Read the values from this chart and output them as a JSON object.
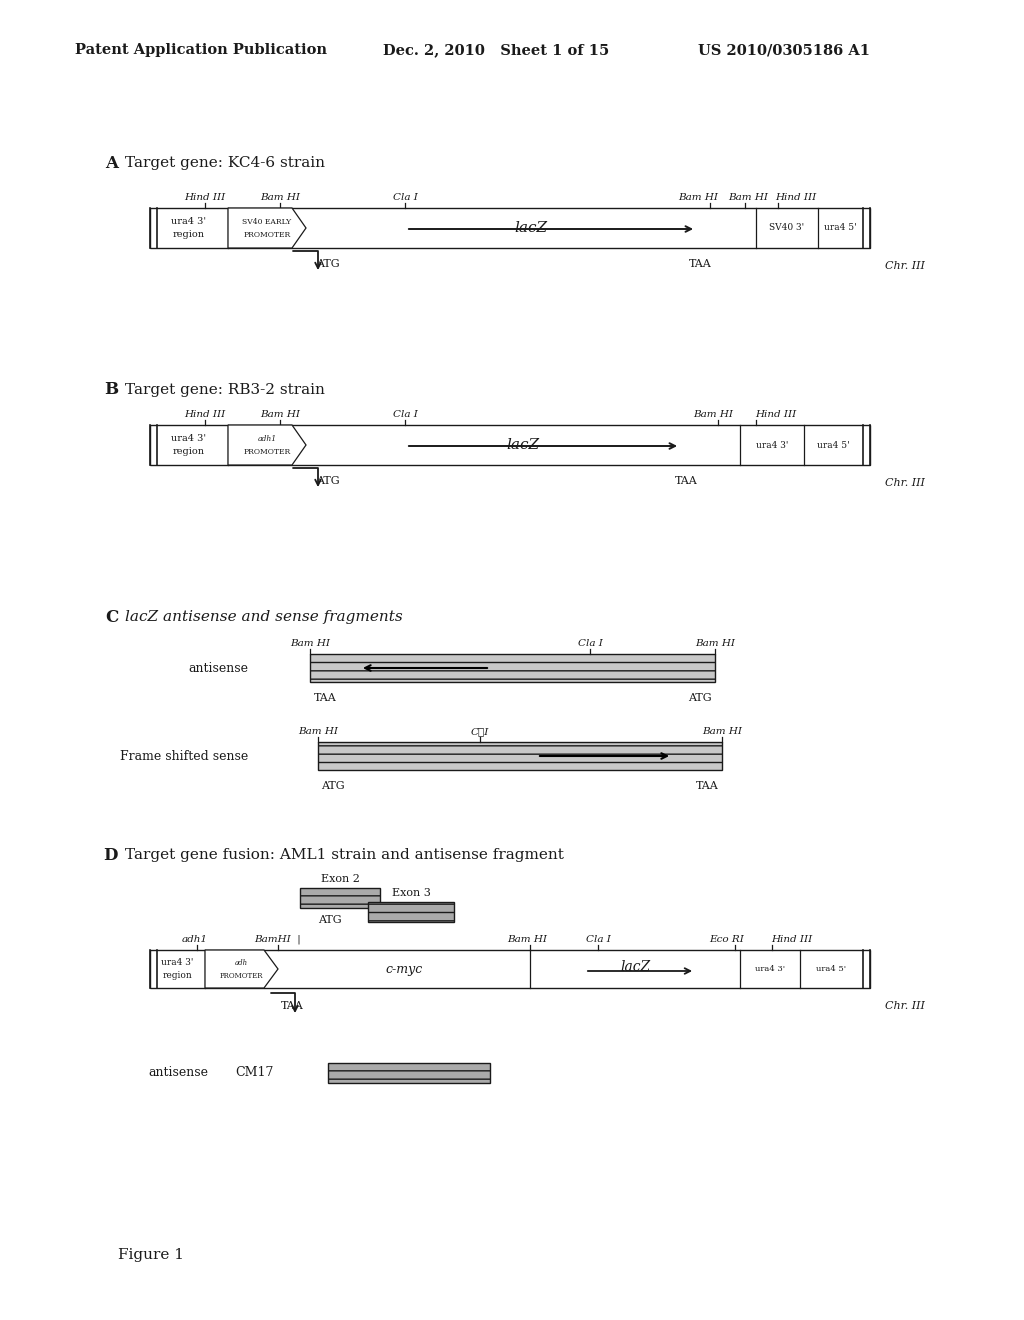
{
  "header_left": "Patent Application Publication",
  "header_mid": "Dec. 2, 2010   Sheet 1 of 15",
  "header_right": "US 2010/0305186 A1",
  "footer": "Figure 1",
  "bg_color": "#ffffff",
  "text_color": "#1a1a1a"
}
